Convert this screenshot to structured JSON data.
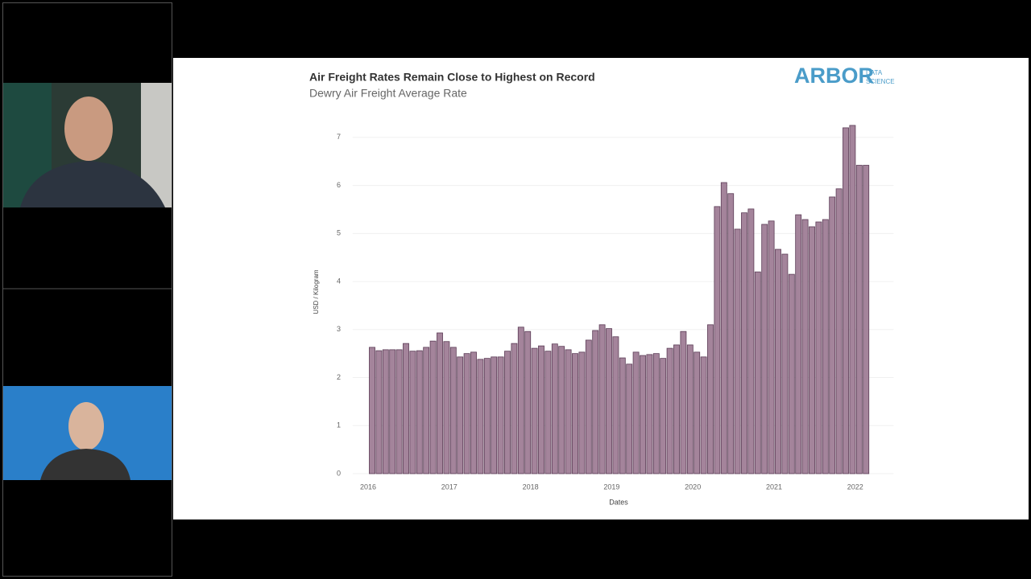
{
  "chart_data": {
    "type": "bar",
    "title": "Air Freight Rates Remain Close to Highest on Record",
    "subtitle": "Dewry Air Freight Average Rate",
    "x_label": "Dates",
    "y_label": "USD / Kilogram",
    "categories": [
      "2016",
      null,
      null,
      null,
      null,
      null,
      null,
      null,
      null,
      null,
      null,
      null,
      "2017",
      null,
      null,
      null,
      null,
      null,
      null,
      null,
      null,
      null,
      null,
      null,
      "2018",
      null,
      null,
      null,
      null,
      null,
      null,
      null,
      null,
      null,
      null,
      null,
      "2019",
      null,
      null,
      null,
      null,
      null,
      null,
      null,
      null,
      null,
      null,
      null,
      "2020",
      null,
      null,
      null,
      null,
      null,
      null,
      null,
      null,
      null,
      null,
      null,
      "2021",
      null,
      null,
      null,
      null,
      null,
      null,
      null,
      null,
      null,
      null,
      null,
      "2022",
      null
    ],
    "values": [
      2.63,
      2.56,
      2.58,
      2.58,
      2.58,
      2.71,
      2.55,
      2.56,
      2.63,
      2.76,
      2.93,
      2.75,
      2.63,
      2.43,
      2.5,
      2.53,
      2.38,
      2.4,
      2.43,
      2.43,
      2.55,
      2.71,
      3.05,
      2.96,
      2.61,
      2.66,
      2.55,
      2.7,
      2.65,
      2.58,
      2.5,
      2.53,
      2.78,
      2.98,
      3.1,
      3.02,
      2.85,
      2.41,
      2.28,
      2.53,
      2.46,
      2.48,
      2.5,
      2.4,
      2.61,
      2.68,
      2.96,
      2.68,
      2.53,
      2.43,
      3.1,
      5.56,
      6.06,
      5.83,
      5.09,
      5.43,
      5.51,
      4.2,
      5.19,
      5.26,
      4.67,
      4.57,
      4.15,
      5.39,
      5.29,
      5.14,
      5.24,
      5.29,
      5.76,
      5.93,
      7.2,
      7.25,
      6.42,
      6.42
    ],
    "color": "#a4849b",
    "ylim": [
      0,
      7.5
    ],
    "yticks": [
      0,
      1,
      2,
      3,
      4,
      5,
      6,
      7
    ],
    "grid": true
  },
  "logo": {
    "name": "ARBOR",
    "tagline": [
      "DATA",
      "SCIENCE"
    ]
  }
}
